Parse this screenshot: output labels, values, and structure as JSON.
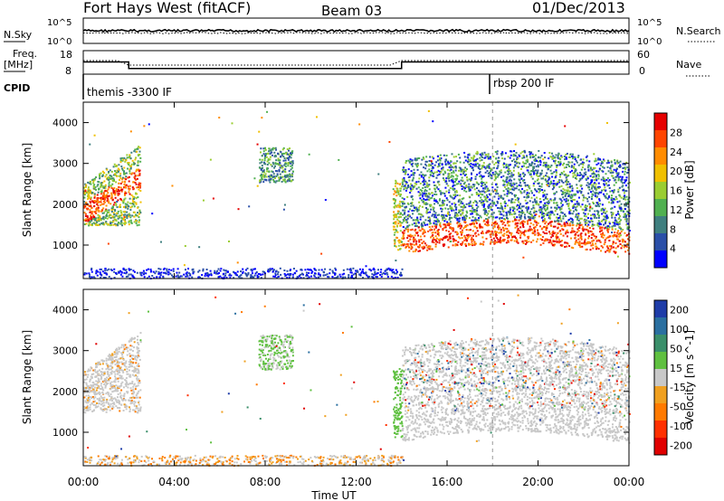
{
  "header": {
    "station": "Fort Hays West (fitACF)",
    "beam": "Beam 03",
    "date": "01/Dec/2013"
  },
  "noise_panel": {
    "left_label": "N.Sky",
    "left_ticks": [
      "10^5",
      "10^0"
    ],
    "right_ticks": [
      "10^5",
      "10^0"
    ],
    "right_label": "N.Search"
  },
  "freq_panel": {
    "left_label_1": "Freq.",
    "left_label_2": "[MHz]",
    "left_ticks": [
      "18",
      "8"
    ],
    "right_ticks": [
      "60",
      "0"
    ],
    "right_label": "Nave",
    "freq_steps": [
      {
        "from": 0,
        "to": 2,
        "mhz": 13.2
      },
      {
        "from": 2,
        "to": 14,
        "mhz": 10.4
      },
      {
        "from": 14,
        "to": 24,
        "mhz": 13.2
      }
    ]
  },
  "cpid_panel": {
    "label": "CPID",
    "segments": [
      {
        "start": "00:00",
        "text": "themis -3300 IF"
      },
      {
        "start": "18:00",
        "text": "rbsp 200 IF"
      }
    ]
  },
  "power_panel": {
    "ylabel": "Slant Range [km]",
    "yticks": [
      "1000",
      "2000",
      "3000",
      "4000"
    ],
    "colorbar_label": "Power [dB]",
    "colorbar_ticks": [
      "4",
      "8",
      "12",
      "16",
      "20",
      "24",
      "28"
    ],
    "colors": [
      "#0000ff",
      "#2a4fa8",
      "#3f7f7f",
      "#50b050",
      "#9acd32",
      "#f0c000",
      "#ff8c00",
      "#ff4500",
      "#e60000"
    ]
  },
  "velocity_panel": {
    "ylabel": "Slant Range [km]",
    "yticks": [
      "1000",
      "2000",
      "3000",
      "4000"
    ],
    "colorbar_label": "Velocity [m s^-1]",
    "colorbar_ticks": [
      "200",
      "100",
      "50",
      "15",
      "-15",
      "-50",
      "-100",
      "-200"
    ],
    "colors": [
      "#1e3ca8",
      "#2a6fa0",
      "#3a8f6a",
      "#5fc040",
      "#c8c8c8",
      "#f0a020",
      "#ff7a00",
      "#ff3000",
      "#e00000"
    ]
  },
  "xaxis": {
    "label": "Time UT",
    "ticks": [
      "00:00",
      "04:00",
      "08:00",
      "12:00",
      "16:00",
      "20:00",
      "00:00"
    ]
  },
  "chart_data": [
    {
      "type": "line",
      "title": "Fort Hays West (fitACF) Beam 03 01/Dec/2013",
      "xlabel": "Time UT",
      "ylabel": "Freq. [MHz]",
      "x": [
        0,
        2,
        2,
        14,
        14,
        24
      ],
      "series": [
        {
          "values": [
            13.2,
            13.2,
            10.4,
            10.4,
            13.2,
            13.2
          ]
        }
      ],
      "ylim": [
        8,
        18
      ]
    },
    {
      "type": "heatmap",
      "xlabel": "Time UT",
      "ylabel": "Slant Range [km]",
      "colorbar": "Power [dB]",
      "xlim": [
        0,
        24
      ],
      "ylim": [
        180,
        4500
      ],
      "clim": [
        0,
        32
      ],
      "regions": [
        {
          "t_start": 0.0,
          "t_end": 2.5,
          "r_low": 1500,
          "r_high": 3200,
          "power_db": 22
        },
        {
          "t_start": 7.0,
          "t_end": 9.3,
          "r_low": 2500,
          "r_high": 3500,
          "power_db": 14
        },
        {
          "t_start": 14.0,
          "t_end": 24.0,
          "r_low": 800,
          "r_high": 3000,
          "power_db": 26
        }
      ]
    },
    {
      "type": "heatmap",
      "xlabel": "Time UT",
      "ylabel": "Slant Range [km]",
      "colorbar": "Velocity [m s^-1]",
      "xlim": [
        0,
        24
      ],
      "ylim": [
        180,
        4500
      ],
      "clim": [
        -250,
        250
      ],
      "regions": [
        {
          "t_start": 0.0,
          "t_end": 2.5,
          "r_low": 1500,
          "r_high": 3200,
          "velocity": 0
        },
        {
          "t_start": 7.0,
          "t_end": 9.3,
          "r_low": 2500,
          "r_high": 3500,
          "velocity": 40
        },
        {
          "t_start": 14.0,
          "t_end": 24.0,
          "r_low": 800,
          "r_high": 3000,
          "velocity": 0
        }
      ]
    }
  ]
}
